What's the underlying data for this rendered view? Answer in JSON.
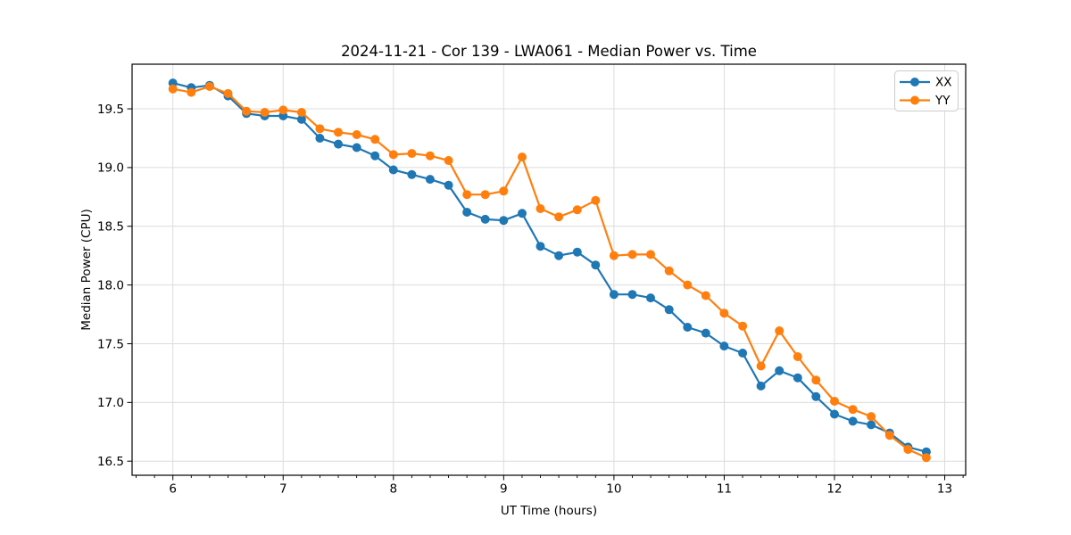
{
  "chart_data": {
    "type": "line",
    "title": "2024-11-21 - Cor 139 - LWA061 - Median Power vs. Time",
    "xlabel": "UT Time (hours)",
    "ylabel": "Median Power (CPU)",
    "xlim": [
      5.63,
      13.19
    ],
    "ylim": [
      16.38,
      19.88
    ],
    "x_major_ticks": [
      6,
      7,
      8,
      9,
      10,
      11,
      12,
      13
    ],
    "x_minor_per_major": 6,
    "y_major_ticks": [
      16.5,
      17.0,
      17.5,
      18.0,
      18.5,
      19.0,
      19.5
    ],
    "grid": true,
    "grid_color": "#dcdcdc",
    "legend_position": "upper right",
    "x": [
      6.0,
      6.167,
      6.333,
      6.5,
      6.667,
      6.833,
      7.0,
      7.167,
      7.333,
      7.5,
      7.667,
      7.833,
      8.0,
      8.167,
      8.333,
      8.5,
      8.667,
      8.833,
      9.0,
      9.167,
      9.333,
      9.5,
      9.667,
      9.833,
      10.0,
      10.167,
      10.333,
      10.5,
      10.667,
      10.833,
      11.0,
      11.167,
      11.333,
      11.5,
      11.667,
      11.833,
      12.0,
      12.167,
      12.333,
      12.5,
      12.667,
      12.833
    ],
    "series": [
      {
        "name": "XX",
        "color": "#1f77b4",
        "values": [
          19.72,
          19.68,
          19.7,
          19.61,
          19.46,
          19.44,
          19.44,
          19.41,
          19.25,
          19.2,
          19.17,
          19.1,
          18.98,
          18.94,
          18.9,
          18.85,
          18.62,
          18.56,
          18.55,
          18.61,
          18.33,
          18.25,
          18.28,
          18.17,
          17.92,
          17.92,
          17.89,
          17.79,
          17.64,
          17.59,
          17.48,
          17.42,
          17.14,
          17.27,
          17.21,
          17.05,
          16.9,
          16.84,
          16.81,
          16.74,
          16.62,
          16.58
        ]
      },
      {
        "name": "YY",
        "color": "#ff7f0e",
        "values": [
          19.67,
          19.64,
          19.69,
          19.63,
          19.48,
          19.47,
          19.49,
          19.47,
          19.33,
          19.3,
          19.28,
          19.24,
          19.11,
          19.12,
          19.1,
          19.06,
          18.77,
          18.77,
          18.8,
          19.09,
          18.65,
          18.58,
          18.64,
          18.72,
          18.25,
          18.26,
          18.26,
          18.12,
          18.0,
          17.91,
          17.76,
          17.65,
          17.31,
          17.61,
          17.39,
          17.19,
          17.01,
          16.94,
          16.88,
          16.72,
          16.6,
          16.53
        ]
      }
    ]
  }
}
